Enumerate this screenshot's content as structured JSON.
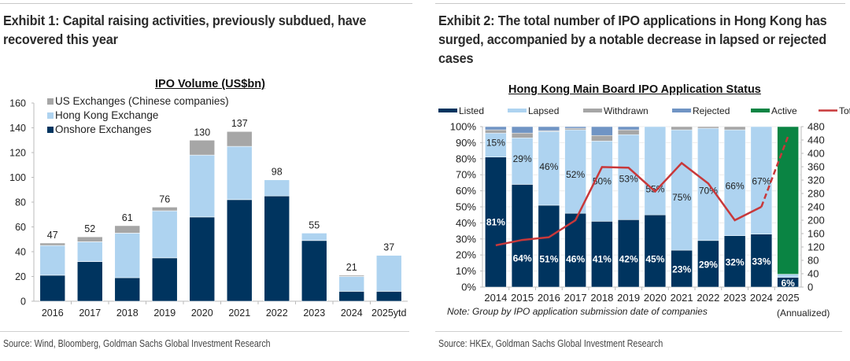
{
  "exhibit1": {
    "title": "Exhibit 1: Capital raising activities, previously subdued, have recovered this year",
    "source": "Source: Wind, Bloomberg, Goldman Sachs Global Investment Research"
  },
  "exhibit2": {
    "title": "Exhibit 2: The total number of IPO applications in Hong Kong has surged, accompanied by a notable decrease in lapsed or rejected cases",
    "note": "Note: Group by IPO application submission date of companies",
    "annualized": "(Annualized)",
    "source": "Source: HKEx, Goldman Sachs Global Investment Research"
  },
  "chart_data": [
    {
      "type": "bar",
      "stacked": true,
      "title": "IPO Volume (US$bn)",
      "xlabel": "",
      "ylabel": "",
      "categories": [
        "2016",
        "2017",
        "2018",
        "2019",
        "2020",
        "2021",
        "2022",
        "2023",
        "2024",
        "2025ytd"
      ],
      "series": [
        {
          "name": "Onshore Exchanges",
          "color": "#00345f",
          "values": [
            21,
            32,
            19,
            35,
            68,
            82,
            85,
            49,
            8,
            8
          ]
        },
        {
          "name": "Hong Kong Exchange",
          "color": "#aed3f0",
          "values": [
            24,
            16,
            36,
            38,
            50,
            43,
            13,
            6,
            12,
            29
          ]
        },
        {
          "name": "US Exchanges (Chinese companies)",
          "color": "#a6a6a6",
          "values": [
            2,
            4,
            6,
            3,
            12,
            12,
            0,
            0,
            1,
            0
          ]
        }
      ],
      "totals": [
        47,
        52,
        61,
        76,
        130,
        137,
        98,
        55,
        21,
        37
      ],
      "legend_order": [
        "US Exchanges (Chinese companies)",
        "Hong Kong Exchange",
        "Onshore Exchanges"
      ],
      "legend_position": "top-left",
      "ylim": [
        0,
        160
      ],
      "yticks": [
        0,
        20,
        40,
        60,
        80,
        100,
        120,
        140,
        160
      ],
      "grid": false
    },
    {
      "type": "bar",
      "stacked": true,
      "percent": true,
      "title": "Hong Kong Main Board IPO Application Status",
      "categories": [
        "2014",
        "2015",
        "2016",
        "2017",
        "2018",
        "2019",
        "2020",
        "2021",
        "2022",
        "2023",
        "2024",
        "2025"
      ],
      "series": [
        {
          "name": "Listed",
          "color": "#00345f",
          "values": [
            81,
            64,
            51,
            46,
            41,
            42,
            45,
            23,
            29,
            32,
            33,
            6
          ],
          "labels": [
            "81%",
            "64%",
            "51%",
            "46%",
            "41%",
            "42%",
            "45%",
            "23%",
            "29%",
            "32%",
            "33%",
            "6%"
          ]
        },
        {
          "name": "Lapsed",
          "color": "#aed3f0",
          "values": [
            15,
            29,
            46,
            52,
            50,
            53,
            55,
            75,
            70,
            66,
            67,
            2
          ],
          "labels": [
            "15%",
            "29%",
            "46%",
            "52%",
            "50%",
            "53%",
            "55%",
            "75%",
            "70%",
            "66%",
            "67%",
            ""
          ]
        },
        {
          "name": "Withdrawn",
          "color": "#a6a6a6",
          "values": [
            2,
            3,
            0.5,
            1,
            3.5,
            3,
            0,
            2,
            1,
            2,
            0,
            0
          ]
        },
        {
          "name": "Rejected",
          "color": "#7094c4",
          "values": [
            2,
            4,
            2.5,
            1,
            5.5,
            2,
            0,
            0,
            0,
            0,
            0,
            0
          ]
        },
        {
          "name": "Active",
          "color": "#0a8443",
          "values": [
            0,
            0,
            0,
            0,
            0,
            0,
            0,
            0,
            0,
            0,
            0,
            92
          ]
        }
      ],
      "line": {
        "name": "Total Submission (RHS)",
        "color": "#c8383a",
        "values": [
          125,
          141,
          149,
          200,
          359,
          357,
          286,
          371,
          310,
          200,
          240,
          450
        ],
        "dashed_last_segment": true
      },
      "ylim": [
        0,
        100
      ],
      "yticks": [
        "0%",
        "10%",
        "20%",
        "30%",
        "40%",
        "50%",
        "60%",
        "70%",
        "80%",
        "90%",
        "100%"
      ],
      "y2lim": [
        0,
        480
      ],
      "y2ticks": [
        0,
        40,
        80,
        120,
        160,
        200,
        240,
        280,
        320,
        360,
        400,
        440,
        480
      ],
      "legend_position": "top",
      "grid": true
    }
  ]
}
